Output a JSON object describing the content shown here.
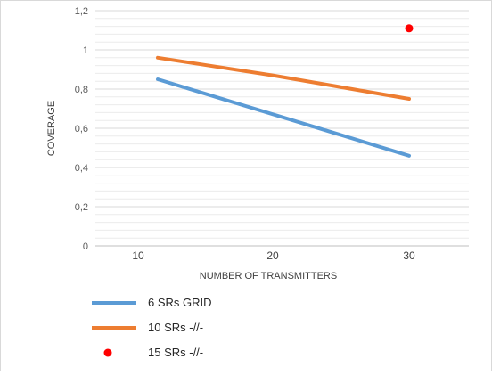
{
  "chart_data": {
    "type": "line",
    "xlabel": "NUMBER OF TRANSMITTERS",
    "ylabel": "COVERAGE",
    "x_ticks": [
      10,
      20,
      30
    ],
    "x_tick_labels": [
      "10",
      "20",
      "30"
    ],
    "y_ticks": [
      0,
      0.2,
      0.4,
      0.6,
      0.8,
      1.0,
      1.2
    ],
    "y_tick_labels": [
      "0",
      "0,2",
      "0,4",
      "0,6",
      "0,8",
      "1",
      "1,2"
    ],
    "ylim": [
      0,
      1.2
    ],
    "grid": true,
    "legend_position": "bottom-left",
    "series": [
      {
        "name": "6 SRs GRID",
        "kind": "line",
        "color": "#5b9bd5",
        "points": [
          {
            "x": 10,
            "y": 0.85
          },
          {
            "x": 30,
            "y": 0.46
          }
        ]
      },
      {
        "name": "10 SRs  -//-",
        "kind": "line",
        "color": "#ed7d31",
        "points": [
          {
            "x": 10,
            "y": 0.96
          },
          {
            "x": 20,
            "y": 0.87
          },
          {
            "x": 30,
            "y": 0.75
          }
        ]
      },
      {
        "name": "15 SRs -//-",
        "kind": "marker",
        "color": "#ff0000",
        "points": [
          {
            "x": 30,
            "y": 1.11
          }
        ]
      }
    ]
  }
}
